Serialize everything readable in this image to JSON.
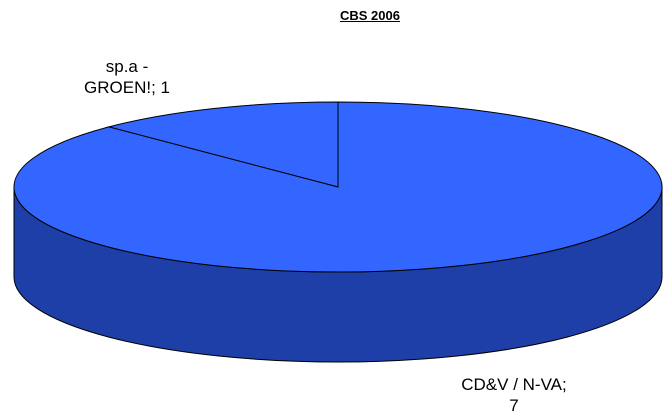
{
  "chart_data": {
    "type": "pie",
    "title": "CBS 2006",
    "values": [
      1,
      7
    ],
    "value_labels": [
      "sp.a - GROEN!; 1",
      "CD&V / N-VA; 7"
    ],
    "colors": [
      "#3366ff",
      "#3366ff"
    ],
    "direction": "counterclockwise",
    "start_angle": 0,
    "three_d": true
  }
}
